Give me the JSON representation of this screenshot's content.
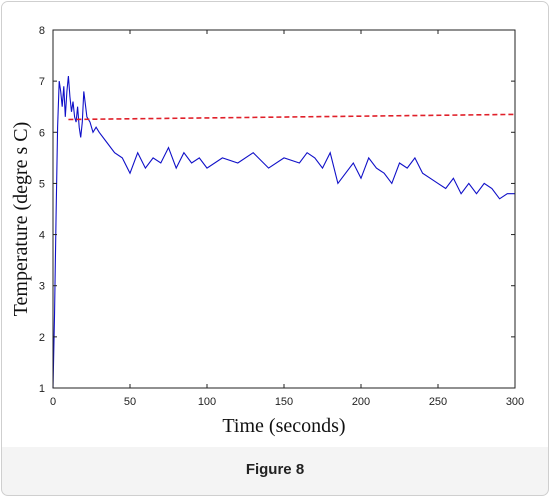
{
  "caption": "Figure 8",
  "chart_data": {
    "type": "line",
    "xlabel": "Time (seconds)",
    "ylabel": "Temperature (degre s C)",
    "xlim": [
      0,
      300
    ],
    "ylim": [
      1,
      8
    ],
    "xticks": [
      0,
      50,
      100,
      150,
      200,
      250,
      300
    ],
    "yticks": [
      1,
      2,
      3,
      4,
      5,
      6,
      7,
      8
    ],
    "grid": false,
    "legend": "none",
    "colors": {
      "series": "#1010c8",
      "reference": "#e0202a"
    },
    "series": [
      {
        "style": "solid",
        "x": [
          0,
          1,
          2,
          3,
          4,
          5,
          6,
          7,
          8,
          9,
          10,
          11,
          12,
          13,
          14,
          15,
          16,
          17,
          18,
          19,
          20,
          22,
          24,
          26,
          28,
          30,
          35,
          40,
          45,
          50,
          55,
          60,
          65,
          70,
          75,
          80,
          85,
          90,
          95,
          100,
          110,
          120,
          130,
          140,
          150,
          160,
          165,
          170,
          175,
          180,
          185,
          190,
          195,
          200,
          205,
          210,
          215,
          220,
          225,
          230,
          235,
          240,
          245,
          250,
          255,
          260,
          265,
          270,
          275,
          280,
          285,
          290,
          295,
          300
        ],
        "y": [
          1.0,
          2.4,
          4.4,
          6.1,
          7.0,
          6.8,
          6.5,
          6.9,
          6.3,
          6.8,
          7.1,
          6.7,
          6.4,
          6.6,
          6.3,
          6.2,
          6.5,
          6.1,
          5.9,
          6.2,
          6.8,
          6.3,
          6.2,
          6.0,
          6.1,
          6.0,
          5.8,
          5.6,
          5.5,
          5.2,
          5.6,
          5.3,
          5.5,
          5.4,
          5.7,
          5.3,
          5.6,
          5.4,
          5.5,
          5.3,
          5.5,
          5.4,
          5.6,
          5.3,
          5.5,
          5.4,
          5.6,
          5.5,
          5.3,
          5.6,
          5.0,
          5.2,
          5.4,
          5.1,
          5.5,
          5.3,
          5.2,
          5.0,
          5.4,
          5.3,
          5.5,
          5.2,
          5.1,
          5.0,
          4.9,
          5.1,
          4.8,
          5.0,
          4.8,
          5.0,
          4.9,
          4.7,
          4.8,
          4.8
        ]
      },
      {
        "style": "dashed",
        "x": [
          10,
          300
        ],
        "y": [
          6.25,
          6.35
        ]
      }
    ]
  }
}
